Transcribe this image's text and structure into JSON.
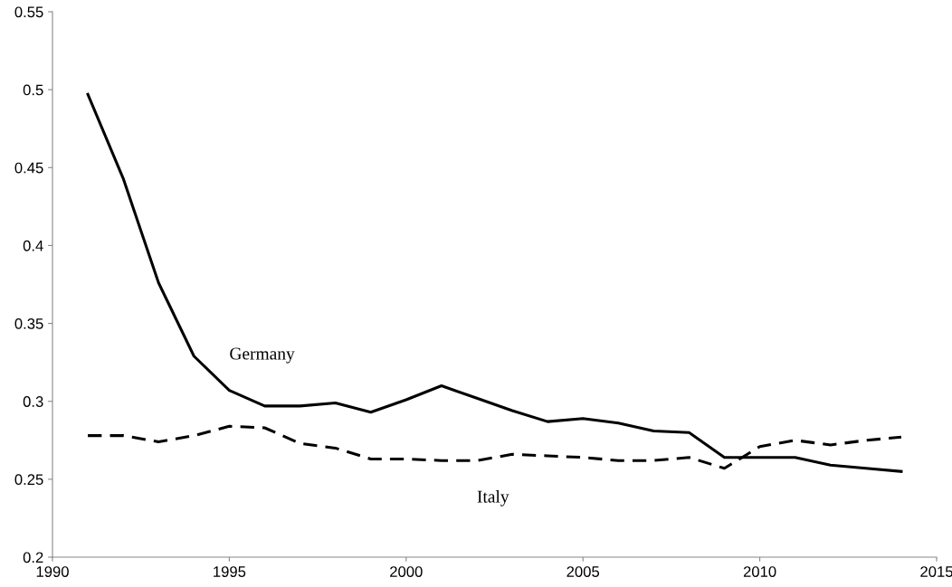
{
  "chart_data": {
    "type": "line",
    "x": [
      1991,
      1992,
      1993,
      1994,
      1995,
      1996,
      1997,
      1998,
      1999,
      2000,
      2001,
      2002,
      2003,
      2004,
      2005,
      2006,
      2007,
      2008,
      2009,
      2010,
      2011,
      2012,
      2013,
      2014
    ],
    "series": [
      {
        "name": "Germany",
        "color": "#000000",
        "line_style": "solid",
        "values": [
          0.497,
          0.443,
          0.376,
          0.329,
          0.307,
          0.297,
          0.297,
          0.299,
          0.293,
          0.301,
          0.31,
          0.302,
          0.294,
          0.287,
          0.289,
          0.286,
          0.281,
          0.28,
          0.264,
          0.264,
          0.264,
          0.259,
          0.257,
          0.255
        ]
      },
      {
        "name": "Italy",
        "color": "#000000",
        "line_style": "dashed",
        "values": [
          0.278,
          0.278,
          0.274,
          0.278,
          0.284,
          0.283,
          0.273,
          0.27,
          0.263,
          0.263,
          0.262,
          0.262,
          0.266,
          0.265,
          0.264,
          0.262,
          0.262,
          0.264,
          0.257,
          0.271,
          0.275,
          0.272,
          0.275,
          0.277
        ]
      }
    ],
    "xlim": [
      1990,
      2015
    ],
    "xticks": [
      1990,
      1995,
      2000,
      2005,
      2010,
      2015
    ],
    "ylim": [
      0.2,
      0.55
    ],
    "yticks": [
      {
        "value": 0.2,
        "label": "0.2"
      },
      {
        "value": 0.25,
        "label": "0.25"
      },
      {
        "value": 0.3,
        "label": "0.3"
      },
      {
        "value": 0.35,
        "label": "0.35"
      },
      {
        "value": 0.4,
        "label": "0.4"
      },
      {
        "value": 0.45,
        "label": "0.45"
      },
      {
        "value": 0.5,
        "label": "0.5"
      },
      {
        "value": 0.55,
        "label": "0.55"
      }
    ],
    "grid": false,
    "legend": false,
    "marker": "none"
  }
}
